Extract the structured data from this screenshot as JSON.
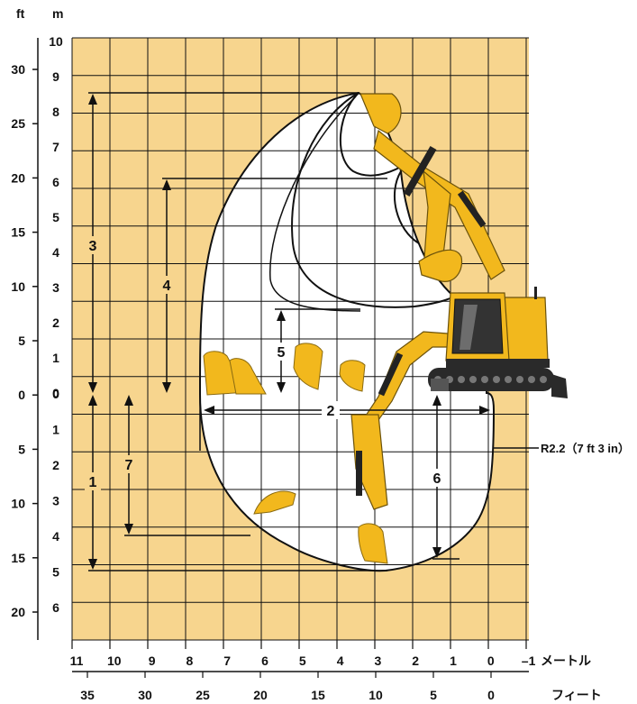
{
  "unit_labels": {
    "ft_top": "ft",
    "m_top": "m",
    "meters_bottom": "メートル",
    "feet_bottom": "フィート"
  },
  "left_ft_ticks": [
    "30",
    "25",
    "20",
    "15",
    "10",
    "5",
    "0",
    "5",
    "10",
    "15",
    "20"
  ],
  "left_m_ticks": [
    "10",
    "9",
    "8",
    "7",
    "6",
    "5",
    "4",
    "3",
    "2",
    "1",
    "0",
    "0",
    "1",
    "2",
    "3",
    "4",
    "5",
    "6"
  ],
  "bottom_m_ticks": [
    "11",
    "10",
    "9",
    "8",
    "7",
    "6",
    "5",
    "4",
    "3",
    "2",
    "1",
    "0",
    "–1"
  ],
  "bottom_ft_ticks": [
    "35",
    "30",
    "25",
    "20",
    "15",
    "10",
    "5",
    "0"
  ],
  "dimensions": {
    "d1": "1",
    "d2": "2",
    "d3": "3",
    "d4": "4",
    "d5": "5",
    "d6": "6",
    "d7": "7",
    "radius_note": "R2.2（7 ft 3 in）"
  },
  "colors": {
    "chart_bg": "#F7D58E",
    "envelope_fill": "#FFFFFF",
    "machine_yellow": "#F2B81D",
    "machine_dark": "#222222",
    "grid": "#111111"
  }
}
